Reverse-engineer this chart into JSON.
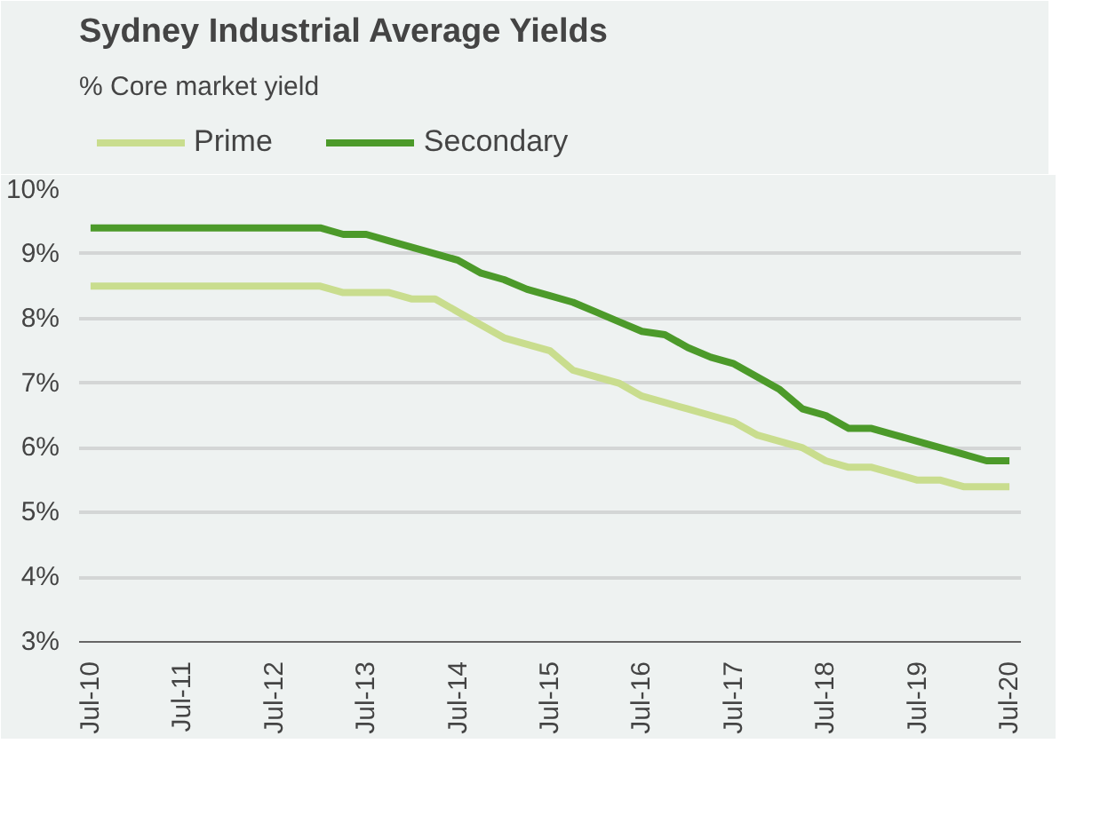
{
  "chart_data": {
    "type": "line",
    "title": "Sydney Industrial Average Yields",
    "subtitle": "% Core market yield",
    "categories": [
      "Jul-10",
      null,
      null,
      null,
      "Jul-11",
      null,
      null,
      null,
      "Jul-12",
      null,
      null,
      null,
      "Jul-13",
      null,
      null,
      null,
      "Jul-14",
      null,
      null,
      null,
      "Jul-15",
      null,
      null,
      null,
      "Jul-16",
      null,
      null,
      null,
      "Jul-17",
      null,
      null,
      null,
      "Jul-18",
      null,
      null,
      null,
      "Jul-19",
      null,
      null,
      null,
      "Jul-20"
    ],
    "series": [
      {
        "name": "Prime",
        "color": "#c9dd8e",
        "values": [
          8.5,
          8.5,
          8.5,
          8.5,
          8.5,
          8.5,
          8.5,
          8.5,
          8.5,
          8.5,
          8.5,
          8.4,
          8.4,
          8.4,
          8.3,
          8.3,
          8.1,
          7.9,
          7.7,
          7.6,
          7.5,
          7.2,
          7.1,
          7.0,
          6.8,
          6.7,
          6.6,
          6.5,
          6.4,
          6.2,
          6.1,
          6.0,
          5.8,
          5.7,
          5.7,
          5.6,
          5.5,
          5.5,
          5.4,
          5.4,
          5.4
        ]
      },
      {
        "name": "Secondary",
        "color": "#4c9a2a",
        "values": [
          9.4,
          9.4,
          9.4,
          9.4,
          9.4,
          9.4,
          9.4,
          9.4,
          9.4,
          9.4,
          9.4,
          9.3,
          9.3,
          9.2,
          9.1,
          9.0,
          8.9,
          8.7,
          8.6,
          8.45,
          8.35,
          8.25,
          8.1,
          7.95,
          7.8,
          7.75,
          7.55,
          7.4,
          7.3,
          7.1,
          6.9,
          6.6,
          6.5,
          6.3,
          6.3,
          6.2,
          6.1,
          6.0,
          5.9,
          5.8,
          5.8
        ]
      }
    ],
    "ylim": [
      3,
      10
    ],
    "yticks": [
      {
        "value": 3,
        "label": "3%"
      },
      {
        "value": 4,
        "label": "4%"
      },
      {
        "value": 5,
        "label": "5%"
      },
      {
        "value": 6,
        "label": "6%"
      },
      {
        "value": 7,
        "label": "7%"
      },
      {
        "value": 8,
        "label": "8%"
      },
      {
        "value": 9,
        "label": "9%"
      },
      {
        "value": 10,
        "label": "10%"
      }
    ],
    "grid": "y",
    "legend": "top",
    "line_style": "solid",
    "marker": "none"
  }
}
